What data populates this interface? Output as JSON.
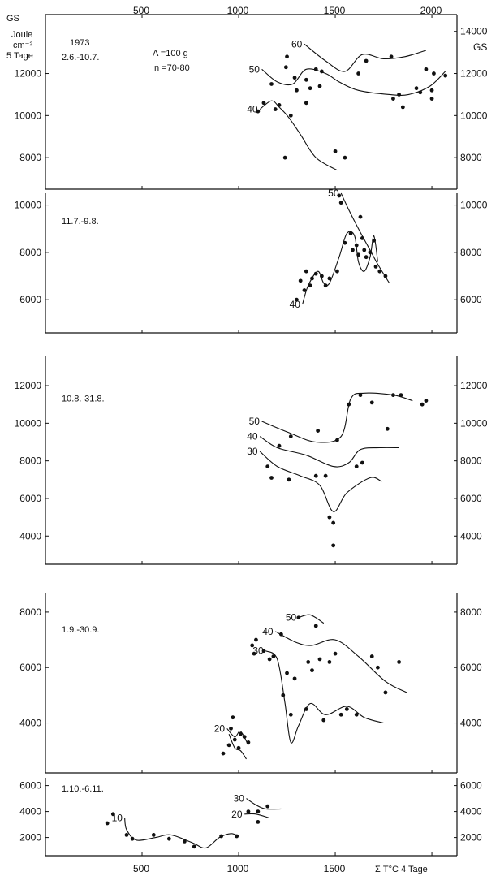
{
  "figure": {
    "top_axis": {
      "ticks": [
        500,
        1000,
        1500,
        2000
      ]
    },
    "bottom_axis": {
      "ticks": [
        500,
        1000,
        1500
      ],
      "title": "Σ T°C  4 Tage"
    },
    "left_unit": {
      "line1": "GS",
      "line2": "Joule",
      "line3": "cm⁻²",
      "line4": "5 Tage"
    },
    "right_unit": "GS",
    "header": {
      "year": "1973",
      "sample": "A =100 g",
      "n": "n =70-80"
    },
    "xlim": [
      0,
      2130
    ]
  },
  "chart_data": [
    {
      "type": "scatter",
      "panel_label": "2.6.-10.7.",
      "ylim": [
        6500,
        14800
      ],
      "yticks": [
        8000,
        10000,
        12000
      ],
      "right_yticks": [
        8000,
        10000,
        12000,
        14000
      ],
      "points": [
        [
          1100,
          10200
        ],
        [
          1130,
          10600
        ],
        [
          1170,
          11500
        ],
        [
          1190,
          10300
        ],
        [
          1210,
          10500
        ],
        [
          1240,
          8000
        ],
        [
          1245,
          12300
        ],
        [
          1250,
          12800
        ],
        [
          1270,
          10000
        ],
        [
          1290,
          11800
        ],
        [
          1300,
          11200
        ],
        [
          1350,
          11700
        ],
        [
          1350,
          10600
        ],
        [
          1370,
          11300
        ],
        [
          1400,
          12200
        ],
        [
          1420,
          11400
        ],
        [
          1430,
          12100
        ],
        [
          1500,
          8300
        ],
        [
          1550,
          8000
        ],
        [
          1620,
          12000
        ],
        [
          1660,
          12600
        ],
        [
          1790,
          12800
        ],
        [
          1800,
          10800
        ],
        [
          1830,
          11000
        ],
        [
          1850,
          10400
        ],
        [
          1920,
          11300
        ],
        [
          1940,
          11100
        ],
        [
          1970,
          12200
        ],
        [
          2000,
          11200
        ],
        [
          2000,
          10800
        ],
        [
          2010,
          12000
        ],
        [
          2070,
          11900
        ]
      ],
      "curves": [
        {
          "label": "60",
          "points": [
            [
              1340,
              13400
            ],
            [
              1450,
              12600
            ],
            [
              1550,
              12100
            ],
            [
              1640,
              12900
            ],
            [
              1750,
              12700
            ],
            [
              1860,
              12800
            ],
            [
              1970,
              13100
            ]
          ]
        },
        {
          "label": "50",
          "points": [
            [
              1120,
              12200
            ],
            [
              1200,
              11600
            ],
            [
              1280,
              11500
            ],
            [
              1350,
              12200
            ],
            [
              1450,
              12000
            ],
            [
              1520,
              11600
            ],
            [
              1620,
              11200
            ],
            [
              1780,
              11000
            ],
            [
              1880,
              11000
            ],
            [
              1990,
              11400
            ],
            [
              2070,
              12100
            ]
          ]
        },
        {
          "label": "40",
          "points": [
            [
              1110,
              10300
            ],
            [
              1170,
              10700
            ],
            [
              1210,
              10400
            ],
            [
              1260,
              9900
            ],
            [
              1320,
              9100
            ],
            [
              1400,
              8000
            ],
            [
              1510,
              7400
            ]
          ]
        }
      ]
    },
    {
      "type": "scatter",
      "panel_label": "11.7.-9.8.",
      "ylim": [
        4600,
        10500
      ],
      "yticks": [
        6000,
        8000,
        10000
      ],
      "right_yticks": [
        6000,
        8000,
        10000
      ],
      "points": [
        [
          1300,
          6000
        ],
        [
          1320,
          6800
        ],
        [
          1340,
          6400
        ],
        [
          1350,
          7200
        ],
        [
          1370,
          6600
        ],
        [
          1380,
          6900
        ],
        [
          1400,
          7100
        ],
        [
          1430,
          7000
        ],
        [
          1450,
          6600
        ],
        [
          1470,
          6900
        ],
        [
          1510,
          7200
        ],
        [
          1520,
          10400
        ],
        [
          1530,
          10100
        ],
        [
          1550,
          8400
        ],
        [
          1580,
          8800
        ],
        [
          1590,
          8100
        ],
        [
          1610,
          8300
        ],
        [
          1620,
          7900
        ],
        [
          1630,
          9500
        ],
        [
          1640,
          8600
        ],
        [
          1650,
          8100
        ],
        [
          1660,
          7800
        ],
        [
          1680,
          8000
        ],
        [
          1700,
          8500
        ],
        [
          1710,
          7400
        ],
        [
          1730,
          7200
        ],
        [
          1760,
          7000
        ]
      ],
      "curves": [
        {
          "label": "50",
          "points": [
            [
              1530,
              10500
            ],
            [
              1570,
              9800
            ],
            [
              1620,
              9000
            ],
            [
              1680,
              8100
            ],
            [
              1720,
              7500
            ],
            [
              1780,
              6700
            ]
          ]
        },
        {
          "label": "40",
          "points": [
            [
              1330,
              5800
            ],
            [
              1360,
              6600
            ],
            [
              1410,
              7200
            ],
            [
              1440,
              6700
            ],
            [
              1470,
              6700
            ],
            [
              1520,
              7800
            ],
            [
              1560,
              8800
            ],
            [
              1600,
              8700
            ],
            [
              1620,
              7600
            ],
            [
              1650,
              7200
            ],
            [
              1680,
              7800
            ],
            [
              1700,
              8700
            ],
            [
              1720,
              7600
            ]
          ]
        }
      ]
    },
    {
      "type": "scatter",
      "panel_label": "10.8.-31.8.",
      "ylim": [
        2500,
        13600
      ],
      "yticks": [
        4000,
        6000,
        8000,
        10000,
        12000
      ],
      "right_yticks": [
        4000,
        6000,
        8000,
        10000,
        12000
      ],
      "points": [
        [
          1150,
          7700
        ],
        [
          1170,
          7100
        ],
        [
          1210,
          8800
        ],
        [
          1260,
          7000
        ],
        [
          1270,
          9300
        ],
        [
          1400,
          7200
        ],
        [
          1410,
          9600
        ],
        [
          1450,
          7200
        ],
        [
          1470,
          5000
        ],
        [
          1490,
          4700
        ],
        [
          1490,
          3500
        ],
        [
          1510,
          9100
        ],
        [
          1570,
          11000
        ],
        [
          1610,
          7700
        ],
        [
          1630,
          11500
        ],
        [
          1640,
          7900
        ],
        [
          1690,
          11100
        ],
        [
          1770,
          9700
        ],
        [
          1800,
          11500
        ],
        [
          1840,
          11500
        ],
        [
          1950,
          11000
        ],
        [
          1970,
          11200
        ]
      ],
      "curves": [
        {
          "label": "50",
          "points": [
            [
              1120,
              10100
            ],
            [
              1260,
              9500
            ],
            [
              1400,
              9000
            ],
            [
              1530,
              9300
            ],
            [
              1580,
              11300
            ],
            [
              1650,
              11600
            ],
            [
              1800,
              11500
            ],
            [
              1900,
              11200
            ]
          ]
        },
        {
          "label": "40",
          "points": [
            [
              1110,
              9300
            ],
            [
              1200,
              8700
            ],
            [
              1350,
              8300
            ],
            [
              1490,
              7700
            ],
            [
              1570,
              7900
            ],
            [
              1630,
              8600
            ],
            [
              1730,
              8700
            ],
            [
              1830,
              8700
            ]
          ]
        },
        {
          "label": "30",
          "points": [
            [
              1110,
              8500
            ],
            [
              1200,
              7700
            ],
            [
              1320,
              7200
            ],
            [
              1420,
              6700
            ],
            [
              1490,
              5300
            ],
            [
              1560,
              6300
            ],
            [
              1680,
              7100
            ],
            [
              1740,
              6900
            ]
          ]
        }
      ]
    },
    {
      "type": "scatter",
      "panel_label": "1.9.-30.9.",
      "ylim": [
        2200,
        8700
      ],
      "yticks": [
        4000,
        6000,
        8000
      ],
      "right_yticks": [
        4000,
        6000,
        8000
      ],
      "points": [
        [
          920,
          2900
        ],
        [
          950,
          3200
        ],
        [
          960,
          3800
        ],
        [
          970,
          4200
        ],
        [
          980,
          3400
        ],
        [
          1000,
          3100
        ],
        [
          1010,
          3600
        ],
        [
          1030,
          3500
        ],
        [
          1050,
          3300
        ],
        [
          1070,
          6800
        ],
        [
          1080,
          6500
        ],
        [
          1090,
          7000
        ],
        [
          1130,
          6600
        ],
        [
          1160,
          6300
        ],
        [
          1180,
          6400
        ],
        [
          1220,
          7200
        ],
        [
          1230,
          5000
        ],
        [
          1250,
          5800
        ],
        [
          1270,
          4300
        ],
        [
          1290,
          5600
        ],
        [
          1310,
          7800
        ],
        [
          1350,
          4500
        ],
        [
          1360,
          6200
        ],
        [
          1380,
          5900
        ],
        [
          1400,
          7500
        ],
        [
          1420,
          6300
        ],
        [
          1440,
          4100
        ],
        [
          1470,
          6200
        ],
        [
          1500,
          6500
        ],
        [
          1530,
          4300
        ],
        [
          1560,
          4500
        ],
        [
          1610,
          4300
        ],
        [
          1690,
          6400
        ],
        [
          1720,
          6000
        ],
        [
          1760,
          5100
        ],
        [
          1830,
          6200
        ]
      ],
      "curves": [
        {
          "label": "50",
          "points": [
            [
              1310,
              7800
            ],
            [
              1370,
              7900
            ],
            [
              1440,
              7600
            ]
          ]
        },
        {
          "label": "40",
          "points": [
            [
              1190,
              7300
            ],
            [
              1300,
              6900
            ],
            [
              1380,
              6800
            ],
            [
              1500,
              7000
            ],
            [
              1620,
              6400
            ],
            [
              1760,
              5500
            ],
            [
              1870,
              5100
            ]
          ]
        },
        {
          "label": "30",
          "points": [
            [
              1140,
              6600
            ],
            [
              1200,
              6300
            ],
            [
              1240,
              4700
            ],
            [
              1270,
              3300
            ],
            [
              1310,
              3900
            ],
            [
              1370,
              4700
            ],
            [
              1450,
              4300
            ],
            [
              1560,
              4600
            ],
            [
              1650,
              4200
            ],
            [
              1750,
              4000
            ]
          ]
        },
        {
          "label": "20",
          "points": [
            [
              940,
              3800
            ],
            [
              980,
              3500
            ],
            [
              1010,
              3700
            ],
            [
              1050,
              3200
            ]
          ]
        },
        {
          "label": "",
          "points": [
            [
              950,
              3600
            ],
            [
              980,
              3100
            ],
            [
              1010,
              3000
            ],
            [
              1040,
              2700
            ]
          ]
        }
      ]
    },
    {
      "type": "scatter",
      "panel_label": "1.10.-6.11.",
      "ylim": [
        600,
        6600
      ],
      "yticks": [
        2000,
        4000,
        6000
      ],
      "right_yticks": [
        2000,
        4000,
        6000
      ],
      "points": [
        [
          320,
          3100
        ],
        [
          350,
          3800
        ],
        [
          420,
          2200
        ],
        [
          450,
          1900
        ],
        [
          560,
          2200
        ],
        [
          640,
          1900
        ],
        [
          720,
          1700
        ],
        [
          770,
          1300
        ],
        [
          910,
          2100
        ],
        [
          990,
          2100
        ],
        [
          1050,
          4000
        ],
        [
          1100,
          4000
        ],
        [
          1100,
          3200
        ],
        [
          1150,
          4400
        ]
      ],
      "curves": [
        {
          "label": "10",
          "points": [
            [
              410,
              3500
            ],
            [
              420,
              2600
            ],
            [
              470,
              1800
            ],
            [
              570,
              2000
            ],
            [
              650,
              2200
            ],
            [
              760,
              1600
            ],
            [
              830,
              1200
            ],
            [
              900,
              2000
            ],
            [
              960,
              2300
            ],
            [
              1000,
              2100
            ]
          ]
        },
        {
          "label": "30",
          "points": [
            [
              1040,
              5000
            ],
            [
              1090,
              4500
            ],
            [
              1140,
              4200
            ],
            [
              1220,
              4200
            ]
          ]
        },
        {
          "label": "20",
          "points": [
            [
              1030,
              3800
            ],
            [
              1090,
              3800
            ],
            [
              1160,
              3500
            ]
          ]
        }
      ]
    }
  ]
}
